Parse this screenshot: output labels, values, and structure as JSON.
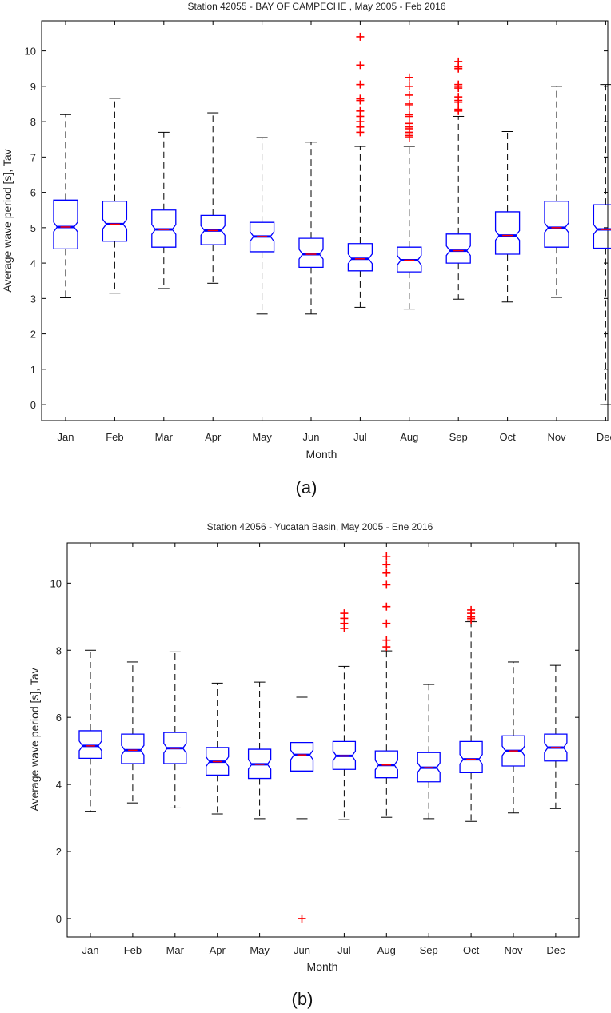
{
  "chart_data": [
    {
      "type": "boxplot",
      "title": "Station 42055 - BAY OF CAMPECHE , May 2005 - Feb 2016",
      "xlabel": "Month",
      "ylabel": "Average wave period [s], Tav",
      "caption": "(a)",
      "ylim": [
        -0.45,
        10.85
      ],
      "yticks": [
        0,
        1,
        2,
        3,
        4,
        5,
        6,
        7,
        8,
        9,
        10
      ],
      "categories": [
        "Jan",
        "Feb",
        "Mar",
        "Apr",
        "May",
        "Jun",
        "Jul",
        "Aug",
        "Sep",
        "Oct",
        "Nov",
        "Dec"
      ],
      "boxes": [
        {
          "month": "Jan",
          "whisker_low": 3.02,
          "q1": 4.4,
          "median": 5.02,
          "q3": 5.78,
          "whisker_high": 8.2,
          "outliers": []
        },
        {
          "month": "Feb",
          "whisker_low": 3.15,
          "q1": 4.62,
          "median": 5.1,
          "q3": 5.75,
          "whisker_high": 8.66,
          "outliers": []
        },
        {
          "month": "Mar",
          "whisker_low": 3.28,
          "q1": 4.45,
          "median": 4.95,
          "q3": 5.5,
          "whisker_high": 7.7,
          "outliers": []
        },
        {
          "month": "Apr",
          "whisker_low": 3.43,
          "q1": 4.52,
          "median": 4.92,
          "q3": 5.35,
          "whisker_high": 8.25,
          "outliers": []
        },
        {
          "month": "May",
          "whisker_low": 2.56,
          "q1": 4.32,
          "median": 4.75,
          "q3": 5.15,
          "whisker_high": 7.55,
          "outliers": []
        },
        {
          "month": "Jun",
          "whisker_low": 2.56,
          "q1": 3.88,
          "median": 4.25,
          "q3": 4.7,
          "whisker_high": 7.42,
          "outliers": []
        },
        {
          "month": "Jul",
          "whisker_low": 2.75,
          "q1": 3.78,
          "median": 4.12,
          "q3": 4.55,
          "whisker_high": 7.3,
          "outliers": [
            7.7,
            7.85,
            8.0,
            8.15,
            8.3,
            8.6,
            8.65,
            9.05,
            9.6,
            10.4
          ]
        },
        {
          "month": "Aug",
          "whisker_low": 2.7,
          "q1": 3.75,
          "median": 4.08,
          "q3": 4.45,
          "whisker_high": 7.3,
          "outliers": [
            7.55,
            7.6,
            7.65,
            7.7,
            7.8,
            7.85,
            7.95,
            8.15,
            8.2,
            8.45,
            8.5,
            8.75,
            9.0,
            9.25
          ]
        },
        {
          "month": "Sep",
          "whisker_low": 2.98,
          "q1": 4.0,
          "median": 4.35,
          "q3": 4.82,
          "whisker_high": 8.15,
          "outliers": [
            8.3,
            8.35,
            8.55,
            8.6,
            8.7,
            8.95,
            9.0,
            9.05,
            9.5,
            9.55,
            9.7
          ]
        },
        {
          "month": "Oct",
          "whisker_low": 2.9,
          "q1": 4.25,
          "median": 4.78,
          "q3": 5.45,
          "whisker_high": 7.72,
          "outliers": []
        },
        {
          "month": "Nov",
          "whisker_low": 3.03,
          "q1": 4.45,
          "median": 5.0,
          "q3": 5.75,
          "whisker_high": 9.0,
          "outliers": []
        },
        {
          "month": "Dec",
          "whisker_low": 0.0,
          "q1": 4.42,
          "median": 4.95,
          "q3": 5.65,
          "whisker_high": 9.05,
          "outliers": []
        }
      ],
      "colors": {
        "box": "#0000ff",
        "median": "#ff0000",
        "whisker": "#000000",
        "outlier": "#ff0000"
      }
    },
    {
      "type": "boxplot",
      "title": "Station 42056 - Yucatan Basin, May 2005 - Ene 2016",
      "xlabel": "Month",
      "ylabel": "Average wave period [s], Tav",
      "caption": "(b)",
      "ylim": [
        -0.55,
        11.2
      ],
      "yticks": [
        0,
        2,
        4,
        6,
        8,
        10
      ],
      "categories": [
        "Jan",
        "Feb",
        "Mar",
        "Apr",
        "May",
        "Jun",
        "Jul",
        "Aug",
        "Sep",
        "Oct",
        "Nov",
        "Dec"
      ],
      "boxes": [
        {
          "month": "Jan",
          "whisker_low": 3.2,
          "q1": 4.78,
          "median": 5.15,
          "q3": 5.6,
          "whisker_high": 8.0,
          "outliers": []
        },
        {
          "month": "Feb",
          "whisker_low": 3.45,
          "q1": 4.62,
          "median": 5.02,
          "q3": 5.5,
          "whisker_high": 7.65,
          "outliers": []
        },
        {
          "month": "Mar",
          "whisker_low": 3.3,
          "q1": 4.62,
          "median": 5.08,
          "q3": 5.55,
          "whisker_high": 7.95,
          "outliers": []
        },
        {
          "month": "Apr",
          "whisker_low": 3.12,
          "q1": 4.28,
          "median": 4.68,
          "q3": 5.1,
          "whisker_high": 7.02,
          "outliers": []
        },
        {
          "month": "May",
          "whisker_low": 2.98,
          "q1": 4.18,
          "median": 4.6,
          "q3": 5.05,
          "whisker_high": 7.05,
          "outliers": []
        },
        {
          "month": "Jun",
          "whisker_low": 2.98,
          "q1": 4.4,
          "median": 4.88,
          "q3": 5.25,
          "whisker_high": 6.6,
          "outliers": [
            0.0
          ]
        },
        {
          "month": "Jul",
          "whisker_low": 2.95,
          "q1": 4.45,
          "median": 4.85,
          "q3": 5.28,
          "whisker_high": 7.52,
          "outliers": [
            8.65,
            8.8,
            8.95,
            9.1
          ]
        },
        {
          "month": "Aug",
          "whisker_low": 3.02,
          "q1": 4.2,
          "median": 4.58,
          "q3": 5.0,
          "whisker_high": 7.98,
          "outliers": [
            8.1,
            8.3,
            8.8,
            9.3,
            9.95,
            10.3,
            10.55,
            10.8
          ]
        },
        {
          "month": "Sep",
          "whisker_low": 2.98,
          "q1": 4.08,
          "median": 4.5,
          "q3": 4.95,
          "whisker_high": 6.98,
          "outliers": []
        },
        {
          "month": "Oct",
          "whisker_low": 2.9,
          "q1": 4.35,
          "median": 4.75,
          "q3": 5.28,
          "whisker_high": 8.85,
          "outliers": [
            8.9,
            8.95,
            9.0,
            9.1,
            9.2
          ]
        },
        {
          "month": "Nov",
          "whisker_low": 3.15,
          "q1": 4.55,
          "median": 5.0,
          "q3": 5.45,
          "whisker_high": 7.65,
          "outliers": []
        },
        {
          "month": "Dec",
          "whisker_low": 3.28,
          "q1": 4.7,
          "median": 5.1,
          "q3": 5.5,
          "whisker_high": 7.55,
          "outliers": []
        }
      ],
      "colors": {
        "box": "#0000ff",
        "median": "#ff0000",
        "whisker": "#000000",
        "outlier": "#ff0000"
      }
    }
  ]
}
